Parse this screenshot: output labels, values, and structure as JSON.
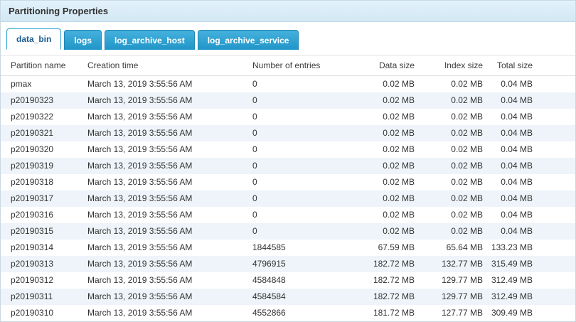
{
  "header": {
    "title": "Partitioning Properties"
  },
  "tabs": [
    {
      "label": "data_bin",
      "active": true
    },
    {
      "label": "logs",
      "active": false
    },
    {
      "label": "log_archive_host",
      "active": false
    },
    {
      "label": "log_archive_service",
      "active": false
    }
  ],
  "colors": {
    "titlebar_bg": "#d2e8f4",
    "tab_active_text": "#1a5b8e",
    "tab_inactive_bg": "#2095c8",
    "row_alt_bg": "#eef4f9"
  },
  "table": {
    "columns": [
      "Partition name",
      "Creation time",
      "Number of entries",
      "Data size",
      "Index size",
      "Total size"
    ],
    "rows": [
      [
        "pmax",
        "March 13, 2019 3:55:56 AM",
        "0",
        "0.02 MB",
        "0.02 MB",
        "0.04 MB"
      ],
      [
        "p20190323",
        "March 13, 2019 3:55:56 AM",
        "0",
        "0.02 MB",
        "0.02 MB",
        "0.04 MB"
      ],
      [
        "p20190322",
        "March 13, 2019 3:55:56 AM",
        "0",
        "0.02 MB",
        "0.02 MB",
        "0.04 MB"
      ],
      [
        "p20190321",
        "March 13, 2019 3:55:56 AM",
        "0",
        "0.02 MB",
        "0.02 MB",
        "0.04 MB"
      ],
      [
        "p20190320",
        "March 13, 2019 3:55:56 AM",
        "0",
        "0.02 MB",
        "0.02 MB",
        "0.04 MB"
      ],
      [
        "p20190319",
        "March 13, 2019 3:55:56 AM",
        "0",
        "0.02 MB",
        "0.02 MB",
        "0.04 MB"
      ],
      [
        "p20190318",
        "March 13, 2019 3:55:56 AM",
        "0",
        "0.02 MB",
        "0.02 MB",
        "0.04 MB"
      ],
      [
        "p20190317",
        "March 13, 2019 3:55:56 AM",
        "0",
        "0.02 MB",
        "0.02 MB",
        "0.04 MB"
      ],
      [
        "p20190316",
        "March 13, 2019 3:55:56 AM",
        "0",
        "0.02 MB",
        "0.02 MB",
        "0.04 MB"
      ],
      [
        "p20190315",
        "March 13, 2019 3:55:56 AM",
        "0",
        "0.02 MB",
        "0.02 MB",
        "0.04 MB"
      ],
      [
        "p20190314",
        "March 13, 2019 3:55:56 AM",
        "1844585",
        "67.59 MB",
        "65.64 MB",
        "133.23 MB"
      ],
      [
        "p20190313",
        "March 13, 2019 3:55:56 AM",
        "4796915",
        "182.72 MB",
        "132.77 MB",
        "315.49 MB"
      ],
      [
        "p20190312",
        "March 13, 2019 3:55:56 AM",
        "4584848",
        "182.72 MB",
        "129.77 MB",
        "312.49 MB"
      ],
      [
        "p20190311",
        "March 13, 2019 3:55:56 AM",
        "4584584",
        "182.72 MB",
        "129.77 MB",
        "312.49 MB"
      ],
      [
        "p20190310",
        "March 13, 2019 3:55:56 AM",
        "4552866",
        "181.72 MB",
        "127.77 MB",
        "309.49 MB"
      ]
    ]
  }
}
